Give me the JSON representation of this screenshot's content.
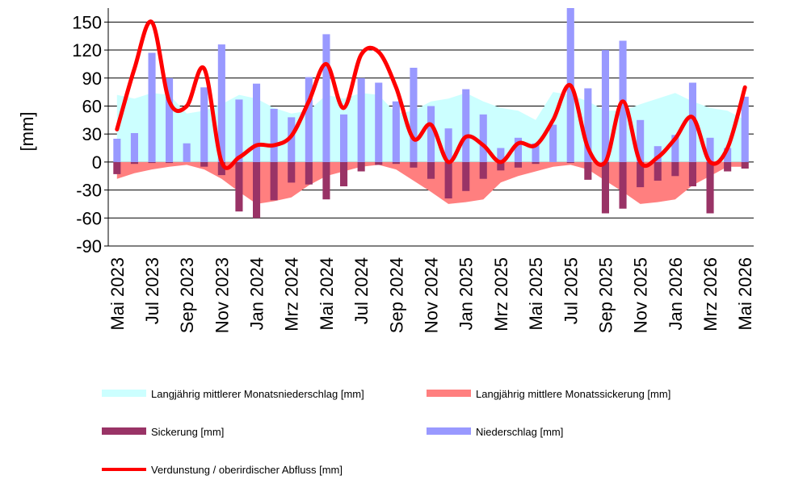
{
  "chart_data": {
    "type": "bar",
    "ylabel": "[mm]",
    "ylim": [
      -90,
      165
    ],
    "yticks": [
      -90,
      -60,
      -30,
      0,
      30,
      60,
      90,
      120,
      150
    ],
    "grid": "horizontal",
    "legend_position": "bottom",
    "categories": [
      "Mai 2023",
      "Jun 2023",
      "Jul 2023",
      "Aug 2023",
      "Sep 2023",
      "Okt 2023",
      "Nov 2023",
      "Dez 2023",
      "Jan 2024",
      "Feb 2024",
      "Mrz 2024",
      "Apr 2024",
      "Mai 2024",
      "Jun 2024",
      "Jul 2024",
      "Aug 2024",
      "Sep 2024",
      "Okt 2024",
      "Nov 2024",
      "Dez 2024",
      "Jan 2025",
      "Feb 2025",
      "Mrz 2025",
      "Apr 2025",
      "Mai 2025",
      "Jun 2025",
      "Jul 2025",
      "Aug 2025",
      "Sep 2025",
      "Okt 2025",
      "Nov 2025",
      "Dez 2025",
      "Jan 2026",
      "Feb 2026",
      "Mrz 2026",
      "Apr 2026",
      "Mai 2026"
    ],
    "x_tick_labels": [
      "Mai 2023",
      "Jul 2023",
      "Sep 2023",
      "Nov 2023",
      "Jan 2024",
      "Mrz 2024",
      "Mai 2024",
      "Jul 2024",
      "Sep 2024",
      "Nov 2024",
      "Jan 2025",
      "Mrz 2025",
      "Mai 2025",
      "Jul 2025",
      "Sep 2025",
      "Nov 2025",
      "Jan 2026",
      "Mrz 2026",
      "Mai 2026"
    ],
    "series": [
      {
        "name": "Langjährig mittlerer Monatsniederschlag [mm]",
        "kind": "area",
        "color": "#ccffff",
        "values": [
          72,
          68,
          74,
          72,
          52,
          55,
          62,
          72,
          68,
          58,
          52,
          55,
          72,
          68,
          74,
          72,
          52,
          55,
          65,
          68,
          74,
          65,
          58,
          55,
          45,
          75,
          72,
          65,
          55,
          55,
          62,
          68,
          74,
          65,
          58,
          55,
          45
        ]
      },
      {
        "name": "Langjährig mittlere Monatssickerung [mm]",
        "kind": "area",
        "color": "#ff7f7f",
        "values": [
          -18,
          -12,
          -8,
          -5,
          -3,
          -8,
          -18,
          -32,
          -45,
          -42,
          -38,
          -25,
          -15,
          -10,
          -5,
          -3,
          -8,
          -20,
          -32,
          -45,
          -43,
          -40,
          -22,
          -15,
          -10,
          -5,
          -3,
          -8,
          -20,
          -32,
          -45,
          -43,
          -40,
          -25,
          -15,
          -5,
          -5
        ]
      },
      {
        "name": "Sickerung [mm]",
        "kind": "bar",
        "color": "#993366",
        "values": [
          -13,
          -2,
          -1,
          -1,
          0,
          -5,
          -14,
          -53,
          -60,
          -41,
          -22,
          -24,
          -40,
          -26,
          -10,
          -3,
          -2,
          -6,
          -18,
          -39,
          -31,
          -18,
          -9,
          -6,
          -2,
          0,
          -1,
          -19,
          -55,
          -50,
          -27,
          -20,
          -15,
          -26,
          -55,
          -10,
          -7
        ]
      },
      {
        "name": "Niederschlag [mm]",
        "kind": "bar",
        "color": "#9999ff",
        "values": [
          25,
          31,
          117,
          90,
          20,
          80,
          126,
          67,
          84,
          57,
          48,
          91,
          137,
          51,
          90,
          85,
          65,
          101,
          60,
          36,
          78,
          51,
          15,
          26,
          20,
          40,
          165,
          79,
          120,
          130,
          45,
          17,
          29,
          85,
          26,
          15,
          70
        ]
      },
      {
        "name": "Verdunstung / oberirdischer Abfluss [mm]",
        "kind": "line",
        "color": "#ff0000",
        "values": [
          35,
          100,
          150,
          65,
          60,
          100,
          0,
          5,
          18,
          18,
          28,
          65,
          105,
          58,
          115,
          118,
          80,
          25,
          40,
          0,
          27,
          18,
          0,
          20,
          18,
          45,
          82,
          15,
          0,
          65,
          0,
          5,
          25,
          48,
          0,
          15,
          80
        ]
      }
    ]
  }
}
